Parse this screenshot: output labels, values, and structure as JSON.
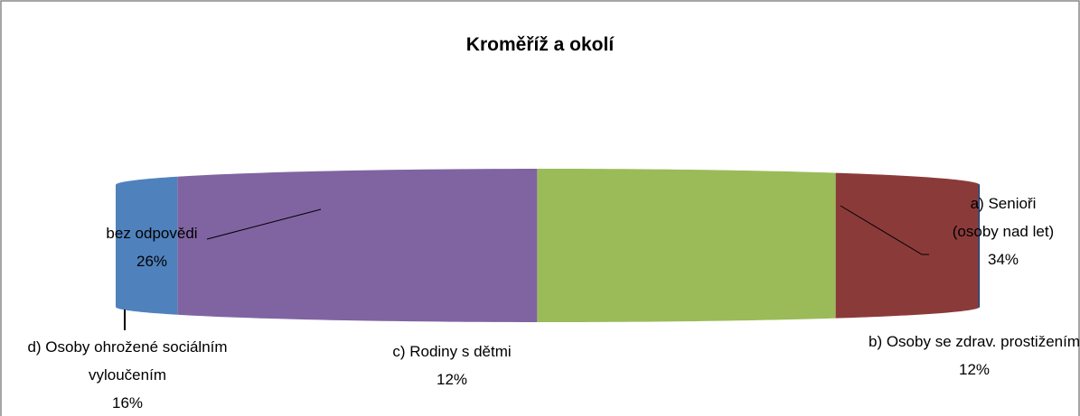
{
  "chart_data": {
    "type": "pie3d",
    "title": "Kroměříž a okolí",
    "categories": [
      "a) Senioři (osoby nad let)",
      "b) Osoby se zdrav. prostižením",
      "c) Rodiny s dětmi",
      "d) Osoby ohrožené sociálním vyloučením",
      "bez odpovědi"
    ],
    "values": [
      34,
      12,
      12,
      16,
      26
    ],
    "value_labels": [
      "34%",
      "12%",
      "12%",
      "16%",
      "26%"
    ],
    "colors": [
      "#1f3864",
      "#8b3a3a",
      "#9bbb59",
      "#8064a2",
      "#4f81bd"
    ]
  }
}
